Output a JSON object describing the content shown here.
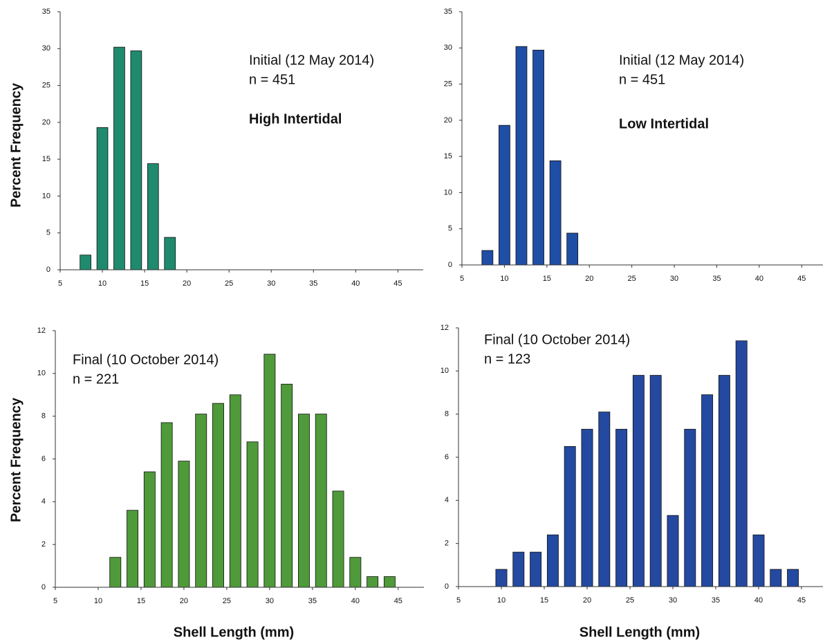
{
  "chart_data": [
    {
      "type": "bar",
      "y_label": "Percent Frequency",
      "annotations": [
        "Initial (12 May 2014)",
        "n = 451"
      ],
      "site": "High Intertidal",
      "x": [
        8,
        10,
        12,
        14,
        16,
        18
      ],
      "values": [
        2,
        19.3,
        30.2,
        29.7,
        14.4,
        4.4
      ],
      "color": "#1f8a6e",
      "xlim": [
        5,
        48
      ],
      "xticks": [
        5,
        10,
        15,
        20,
        25,
        30,
        35,
        40,
        45
      ],
      "ylim": [
        0,
        35
      ],
      "yticks": [
        0,
        5,
        10,
        15,
        20,
        25,
        30,
        35
      ]
    },
    {
      "type": "bar",
      "annotations": [
        "Initial (12 May 2014)",
        "n = 451"
      ],
      "site": "Low Intertidal",
      "x": [
        8,
        10,
        12,
        14,
        16,
        18
      ],
      "values": [
        2,
        19.3,
        30.2,
        29.7,
        14.4,
        4.4
      ],
      "color": "#1f4ea6",
      "xlim": [
        5,
        47.5
      ],
      "xticks": [
        5,
        10,
        15,
        20,
        25,
        30,
        35,
        40,
        45
      ],
      "ylim": [
        0,
        35
      ],
      "yticks": [
        0,
        5,
        10,
        15,
        20,
        25,
        30,
        35
      ]
    },
    {
      "type": "bar",
      "y_label": "Percent Frequency",
      "x_label": "Shell Length (mm)",
      "annotations": [
        "Final (10 October  2014)",
        "n = 221"
      ],
      "x": [
        12,
        14,
        16,
        18,
        20,
        22,
        24,
        26,
        28,
        30,
        32,
        34,
        36,
        38,
        40,
        42,
        44
      ],
      "values": [
        1.4,
        3.6,
        5.4,
        7.7,
        5.9,
        8.1,
        8.6,
        9.0,
        6.8,
        10.9,
        9.5,
        8.1,
        8.1,
        4.5,
        1.4,
        0.5,
        0.5
      ],
      "color": "#4f9a3a",
      "xlim": [
        5,
        48
      ],
      "xticks": [
        5,
        10,
        15,
        20,
        25,
        30,
        35,
        40,
        45
      ],
      "ylim": [
        0,
        12
      ],
      "yticks": [
        0,
        2,
        4,
        6,
        8,
        10,
        12
      ]
    },
    {
      "type": "bar",
      "x_label": "Shell Length (mm)",
      "annotations": [
        "Final (10 October  2014)",
        "n = 123"
      ],
      "x": [
        10,
        12,
        14,
        16,
        18,
        20,
        22,
        24,
        26,
        28,
        30,
        32,
        34,
        36,
        38,
        40,
        42,
        44
      ],
      "values": [
        0.8,
        1.6,
        1.6,
        2.4,
        6.5,
        7.3,
        8.1,
        7.3,
        9.8,
        9.8,
        3.3,
        7.3,
        8.9,
        9.8,
        11.4,
        2.4,
        0.8,
        0.8
      ],
      "color": "#2449a0",
      "xlim": [
        5,
        47.5
      ],
      "xticks": [
        5,
        10,
        15,
        20,
        25,
        30,
        35,
        40,
        45
      ],
      "ylim": [
        0,
        12
      ],
      "yticks": [
        0,
        2,
        4,
        6,
        8,
        10,
        12
      ]
    }
  ]
}
